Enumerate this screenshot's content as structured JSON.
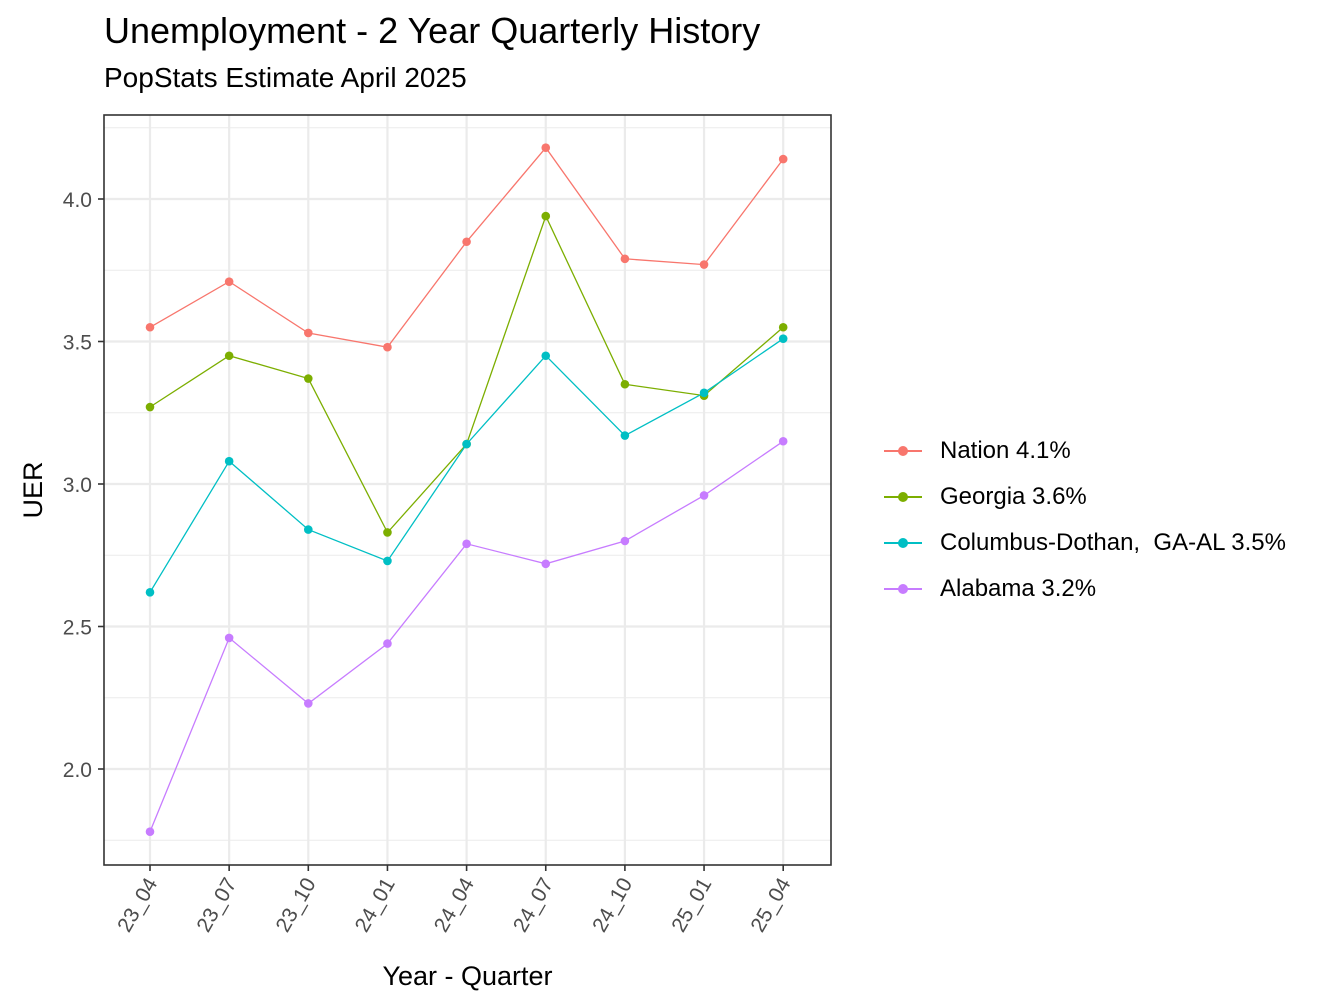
{
  "title": "Unemployment - 2 Year Quarterly History",
  "subtitle": "PopStats Estimate April 2025",
  "chart_data": {
    "type": "line",
    "title": "Unemployment - 2 Year Quarterly History",
    "subtitle": "PopStats Estimate April 2025",
    "xlabel": "Year - Quarter",
    "ylabel": "UER",
    "categories": [
      "23_04",
      "23_07",
      "23_10",
      "24_01",
      "24_04",
      "24_07",
      "24_10",
      "25_01",
      "25_04"
    ],
    "yticks": [
      "2.0",
      "2.5",
      "3.0",
      "3.5",
      "4.0"
    ],
    "ylim": [
      1.67,
      4.25
    ],
    "grid": true,
    "legend_position": "right",
    "series": [
      {
        "name": "Nation 4.1%",
        "color": "#F8766D",
        "values": [
          3.55,
          3.71,
          3.53,
          3.48,
          3.85,
          4.18,
          3.79,
          3.77,
          4.14
        ]
      },
      {
        "name": "Georgia 3.6%",
        "color": "#7CAE00",
        "values": [
          3.27,
          3.45,
          3.37,
          2.83,
          3.14,
          3.94,
          3.35,
          3.31,
          3.55
        ]
      },
      {
        "name": "Columbus-Dothan,  GA-AL 3.5%",
        "color": "#00BFC4",
        "values": [
          2.62,
          3.08,
          2.84,
          2.73,
          3.14,
          3.45,
          3.17,
          3.32,
          3.51
        ]
      },
      {
        "name": "Alabama 3.2%",
        "color": "#C77CFF",
        "values": [
          1.78,
          2.46,
          2.23,
          2.44,
          2.79,
          2.72,
          2.8,
          2.96,
          3.15
        ]
      }
    ]
  }
}
